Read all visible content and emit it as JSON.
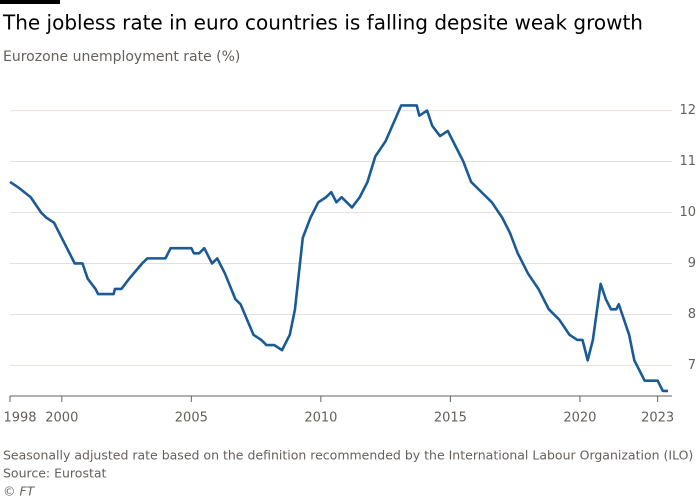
{
  "chart_data": {
    "type": "line",
    "title": "The jobless rate in euro countries is falling depsite weak growth",
    "subtitle": "Eurozone unemployment rate (%)",
    "footnote": "Seasonally adjusted rate based on the definition recommended by the International Labour Organization (ILO)",
    "source": "Source: Eurostat",
    "credit": "© FT",
    "x": [
      1998.0,
      1998.3,
      1998.8,
      1999.2,
      1999.4,
      1999.7,
      1999.9,
      2000.2,
      2000.5,
      2000.8,
      2001.0,
      2001.3,
      2001.4,
      2002.0,
      2002.05,
      2002.3,
      2002.6,
      2003.1,
      2003.3,
      2004.0,
      2004.2,
      2005.0,
      2005.1,
      2005.3,
      2005.5,
      2005.8,
      2006.0,
      2006.3,
      2006.7,
      2006.9,
      2007.4,
      2007.7,
      2007.9,
      2008.2,
      2008.5,
      2008.8,
      2009.0,
      2009.3,
      2009.6,
      2009.9,
      2010.2,
      2010.4,
      2010.6,
      2010.8,
      2011.2,
      2011.5,
      2011.8,
      2012.1,
      2012.5,
      2013.1,
      2013.7,
      2013.8,
      2014.1,
      2014.3,
      2014.6,
      2014.9,
      2015.2,
      2015.5,
      2015.8,
      2016.2,
      2016.6,
      2017.0,
      2017.3,
      2017.6,
      2018.0,
      2018.4,
      2018.8,
      2019.2,
      2019.6,
      2019.9,
      2020.1,
      2020.3,
      2020.5,
      2020.8,
      2021.0,
      2021.2,
      2021.4,
      2021.5,
      2021.9,
      2022.1,
      2022.3,
      2022.5,
      2023.0,
      2023.2,
      2023.4
    ],
    "series": [
      {
        "name": "Eurozone unemployment rate",
        "color": "#1a5a96",
        "values": [
          10.6,
          10.5,
          10.3,
          10.0,
          9.9,
          9.8,
          9.6,
          9.3,
          9.0,
          9.0,
          8.7,
          8.5,
          8.4,
          8.4,
          8.5,
          8.5,
          8.7,
          9.0,
          9.1,
          9.1,
          9.3,
          9.3,
          9.2,
          9.2,
          9.3,
          9.0,
          9.1,
          8.8,
          8.3,
          8.2,
          7.6,
          7.5,
          7.4,
          7.4,
          7.3,
          7.6,
          8.1,
          9.5,
          9.9,
          10.2,
          10.3,
          10.4,
          10.2,
          10.3,
          10.1,
          10.3,
          10.6,
          11.1,
          11.4,
          12.1,
          12.1,
          11.9,
          12.0,
          11.7,
          11.5,
          11.6,
          11.3,
          11.0,
          10.6,
          10.4,
          10.2,
          9.9,
          9.6,
          9.2,
          8.8,
          8.5,
          8.1,
          7.9,
          7.6,
          7.5,
          7.5,
          7.1,
          7.5,
          8.6,
          8.3,
          8.1,
          8.1,
          8.2,
          7.6,
          7.1,
          6.9,
          6.7,
          6.7,
          6.5,
          6.5
        ]
      }
    ],
    "xlim": [
      1998,
      2023.4
    ],
    "xticks": [
      1998,
      2000,
      2005,
      2010,
      2015,
      2020,
      2023
    ],
    "ylim": [
      6.4,
      12.6
    ],
    "yticks": [
      7,
      8,
      9,
      10,
      11,
      12
    ],
    "grid": true
  }
}
